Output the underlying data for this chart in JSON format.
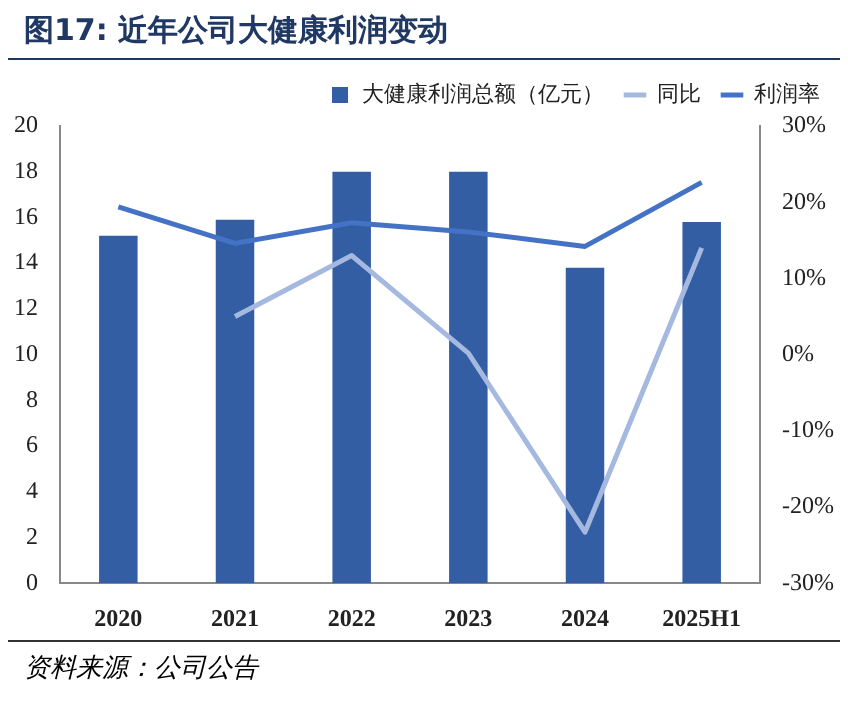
{
  "chart_data": {
    "type": "bar",
    "title": "图17: 近年公司大健康利润变动",
    "categories": [
      "2020",
      "2021",
      "2022",
      "2023",
      "2024",
      "2025H1"
    ],
    "series": [
      {
        "name": "大健康利润总额（亿元）",
        "color": "#335ea3",
        "values": [
          15.2,
          15.9,
          18.0,
          18.0,
          13.8,
          15.8
        ]
      },
      {
        "name": "同比",
        "type": "line",
        "axis": "y2",
        "color": "#a5b8e0",
        "values": [
          null,
          5.0,
          13.0,
          0.2,
          -23.3,
          14.0
        ]
      },
      {
        "name": "利润率",
        "type": "line",
        "axis": "y2",
        "color": "#4472c4",
        "values": [
          19.4,
          14.6,
          17.3,
          16.1,
          14.2,
          22.6
        ]
      }
    ],
    "ylim": [
      0,
      20
    ],
    "yticks": [
      0,
      2,
      4,
      6,
      8,
      10,
      12,
      14,
      16,
      18,
      20
    ],
    "y2lim": [
      -30,
      30
    ],
    "y2ticks": [
      {
        "value": -30,
        "label": "-30%"
      },
      {
        "value": -20,
        "label": "-20%"
      },
      {
        "value": -10,
        "label": "-10%"
      },
      {
        "value": 0,
        "label": "0%"
      },
      {
        "value": 10,
        "label": "10%"
      },
      {
        "value": 20,
        "label": "20%"
      },
      {
        "value": 30,
        "label": "30%"
      }
    ],
    "grid": false,
    "legend": "top",
    "marker": "none",
    "annotations": [
      "资料来源：公司公告"
    ]
  }
}
